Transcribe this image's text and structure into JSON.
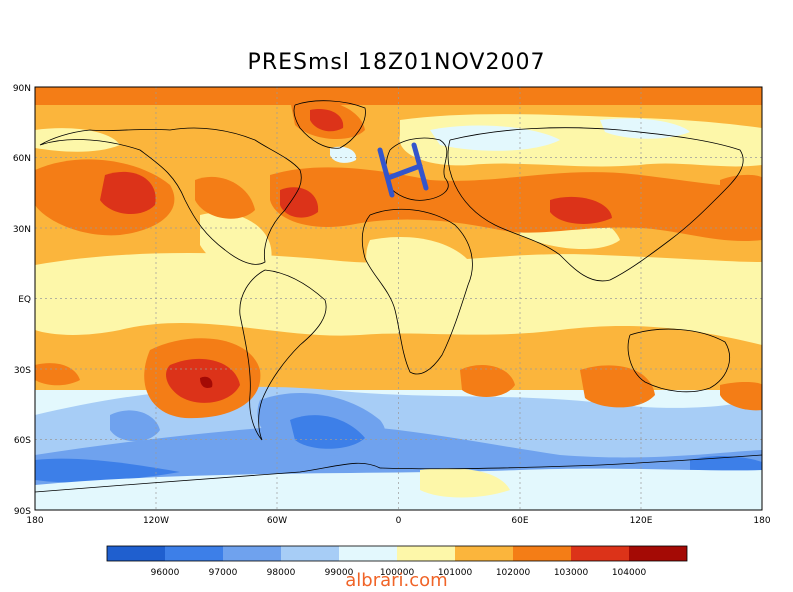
{
  "title": "PRESmsl  18Z01NOV2007",
  "watermark": "albrari.com",
  "colors": {
    "lt96000": "#1f5fcf",
    "96000_97000": "#3d7fe8",
    "97000_98000": "#6fa2ee",
    "98000_99000": "#a7cdf6",
    "99000_100000": "#e3f8fd",
    "100000_101000": "#fdf7a9",
    "101000_102000": "#fbb53c",
    "102000_103000": "#f47d16",
    "103000_104000": "#dc3319",
    "gt104000": "#a40a05",
    "coastline": "#000000",
    "grid": "#9a9a9a",
    "marker": "#3355cc"
  },
  "axes": {
    "lat_ticks": [
      "90N",
      "60N",
      "30N",
      "EQ",
      "30S",
      "60S",
      "90S"
    ],
    "lon_ticks": [
      "180",
      "120W",
      "60W",
      "0",
      "60E",
      "120E",
      "180"
    ]
  },
  "colorbar": {
    "labels": [
      "96000",
      "97000",
      "98000",
      "99000",
      "100000",
      "101000",
      "102000",
      "103000",
      "104000"
    ]
  }
}
